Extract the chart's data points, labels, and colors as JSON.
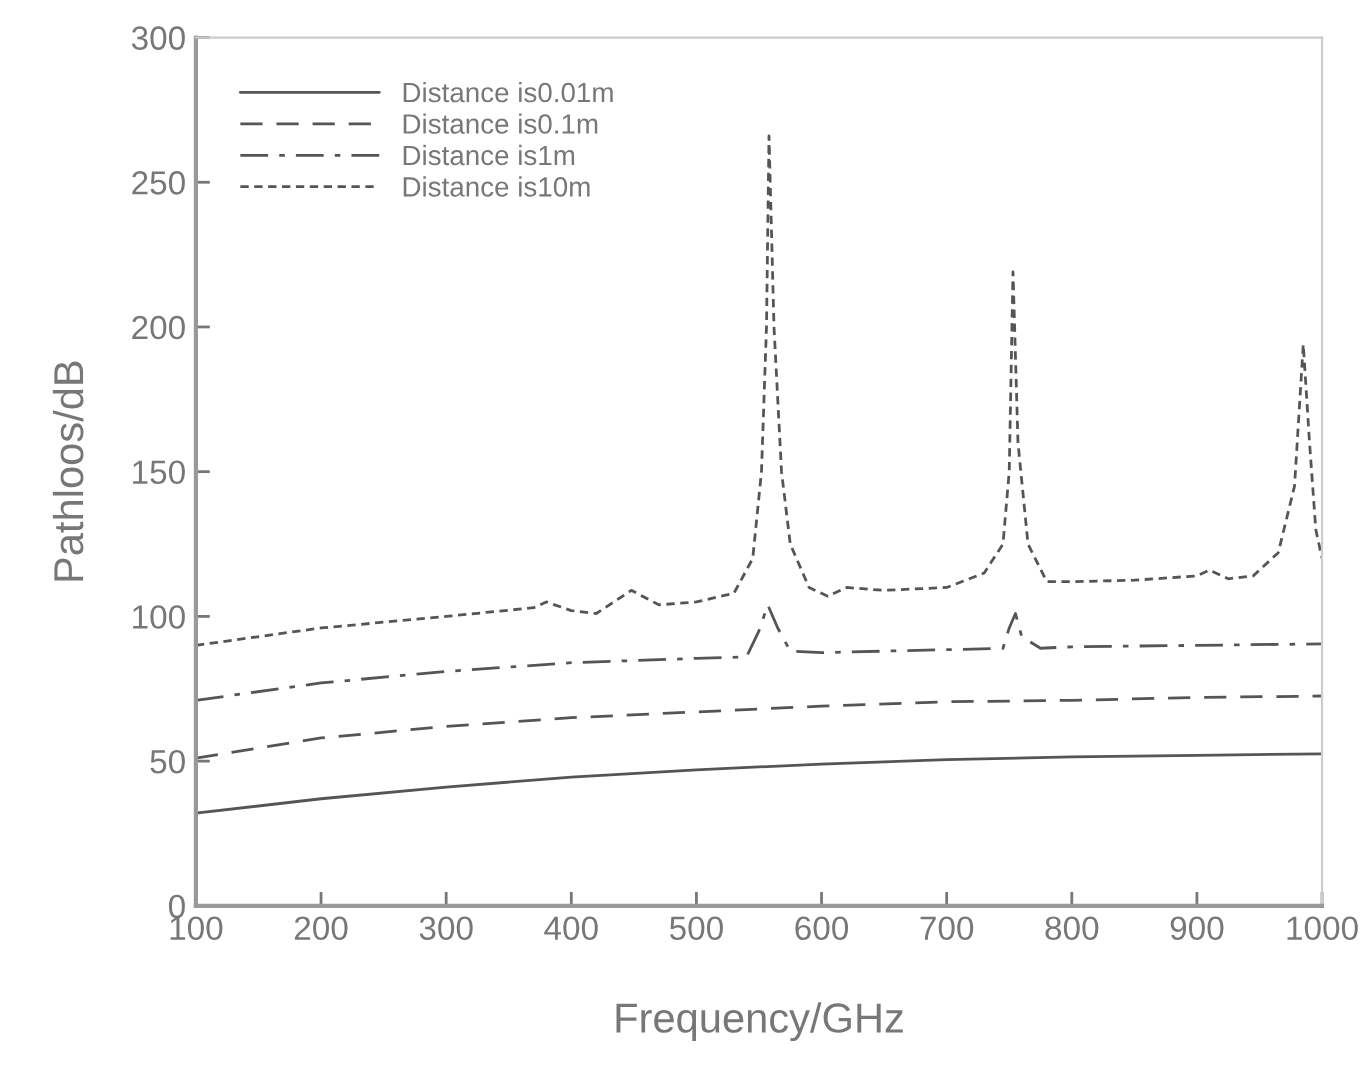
{
  "chart_data": {
    "type": "line",
    "xlabel": "Frequency/GHz",
    "ylabel": "Pathloos/dB",
    "xlim": [
      100,
      1000
    ],
    "xticks": [
      100,
      200,
      300,
      400,
      500,
      600,
      700,
      800,
      900,
      1000
    ],
    "ylim": [
      0,
      300
    ],
    "yticks": [
      0,
      50,
      100,
      150,
      200,
      250,
      300
    ],
    "grid": false,
    "legend": "top left",
    "marker": "none",
    "series": [
      {
        "name": "Distance is0.01m",
        "color": "#555555",
        "line_style": "solid",
        "x": [
          100,
          200,
          300,
          400,
          500,
          600,
          700,
          800,
          900,
          1000
        ],
        "values": [
          32,
          37,
          41,
          44.5,
          47,
          49,
          50.5,
          51.5,
          52,
          52.5
        ]
      },
      {
        "name": "Distance is0.1m",
        "color": "#555555",
        "line_style": "dashed",
        "x": [
          100,
          200,
          300,
          400,
          500,
          600,
          700,
          800,
          900,
          1000
        ],
        "values": [
          51,
          58,
          62,
          65,
          67,
          69,
          70.5,
          71,
          72,
          72.5
        ]
      },
      {
        "name": "Distance is1m",
        "color": "#555555",
        "line_style": "dashdot",
        "x": [
          100,
          200,
          300,
          400,
          500,
          540,
          550,
          557,
          565,
          575,
          600,
          700,
          745,
          750,
          755,
          760,
          775,
          800,
          900,
          1000
        ],
        "values": [
          71,
          77,
          81,
          84,
          85.5,
          86,
          95,
          104,
          96,
          88,
          87.5,
          88.5,
          89,
          96,
          101,
          93,
          89,
          89.5,
          90,
          90.5
        ]
      },
      {
        "name": "Distance is10m",
        "color": "#555555",
        "line_style": "dotted",
        "x": [
          100,
          200,
          300,
          370,
          380,
          400,
          420,
          448,
          470,
          500,
          530,
          545,
          552,
          556,
          558,
          562,
          568,
          575,
          590,
          605,
          620,
          650,
          700,
          730,
          745,
          750,
          753,
          757,
          765,
          780,
          800,
          850,
          900,
          910,
          925,
          945,
          965,
          978,
          985,
          990,
          995,
          1000
        ],
        "values": [
          90,
          96,
          100,
          103,
          105,
          102,
          101,
          109,
          104,
          105,
          108,
          120,
          150,
          200,
          266,
          200,
          150,
          125,
          110,
          107,
          110,
          109,
          110,
          115,
          125,
          150,
          219,
          160,
          125,
          112,
          112,
          112.5,
          114,
          116,
          113,
          114,
          122,
          145,
          194,
          160,
          130,
          120
        ]
      }
    ]
  }
}
